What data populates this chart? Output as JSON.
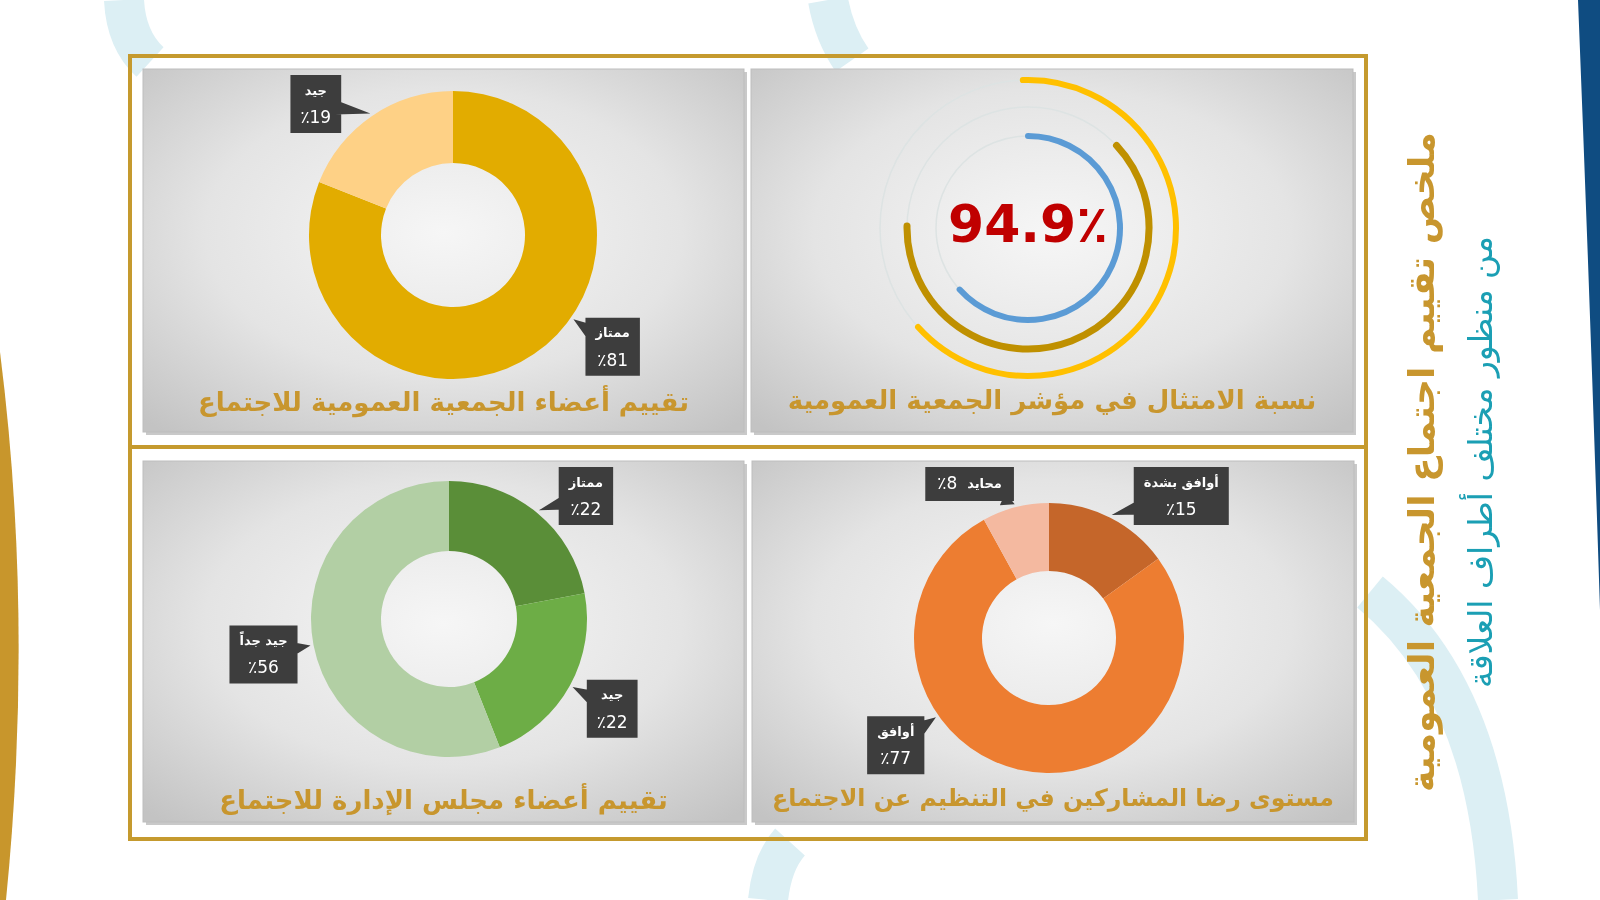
{
  "chart_data": [
    {
      "type": "other",
      "title": "ملخص تقييم اجتماع الجمعية العمومية",
      "subtitle": "من منظور مختلف أطراف العلاقة"
    },
    {
      "type": "other",
      "title": "نسبة الامتثال في مؤشر الجمعية العمومية",
      "annotations": [
        "94.9٪"
      ]
    },
    {
      "type": "donut",
      "title": "تقييم أعضاء الجمعية العمومية للاجتماع",
      "categories": [
        "ممتاز",
        "جيد"
      ],
      "values": [
        81,
        19
      ],
      "colors": [
        "#e2ac00",
        "#fed186"
      ],
      "value_labels": [
        "٪81",
        "٪19"
      ]
    },
    {
      "type": "donut",
      "title": "مستوى رضا المشاركين في التنظيم عن الاجتماع",
      "categories": [
        "أوافق بشدة",
        "أوافق",
        "محايد"
      ],
      "values": [
        15,
        77,
        8
      ],
      "colors": [
        "#c5662a",
        "#ed7d31",
        "#f4b9a0"
      ],
      "value_labels": [
        "٪15",
        "٪77",
        "٪8"
      ]
    },
    {
      "type": "donut",
      "title": "تقييم أعضاء مجلس الإدارة للاجتماع",
      "categories": [
        "ممتاز",
        "جيد",
        "جيد جداً"
      ],
      "values": [
        22,
        22,
        56
      ],
      "colors": [
        "#5a8e38",
        "#6dad46",
        "#b2cfa4"
      ],
      "value_labels": [
        "٪22",
        "٪22",
        "٪56"
      ]
    }
  ]
}
